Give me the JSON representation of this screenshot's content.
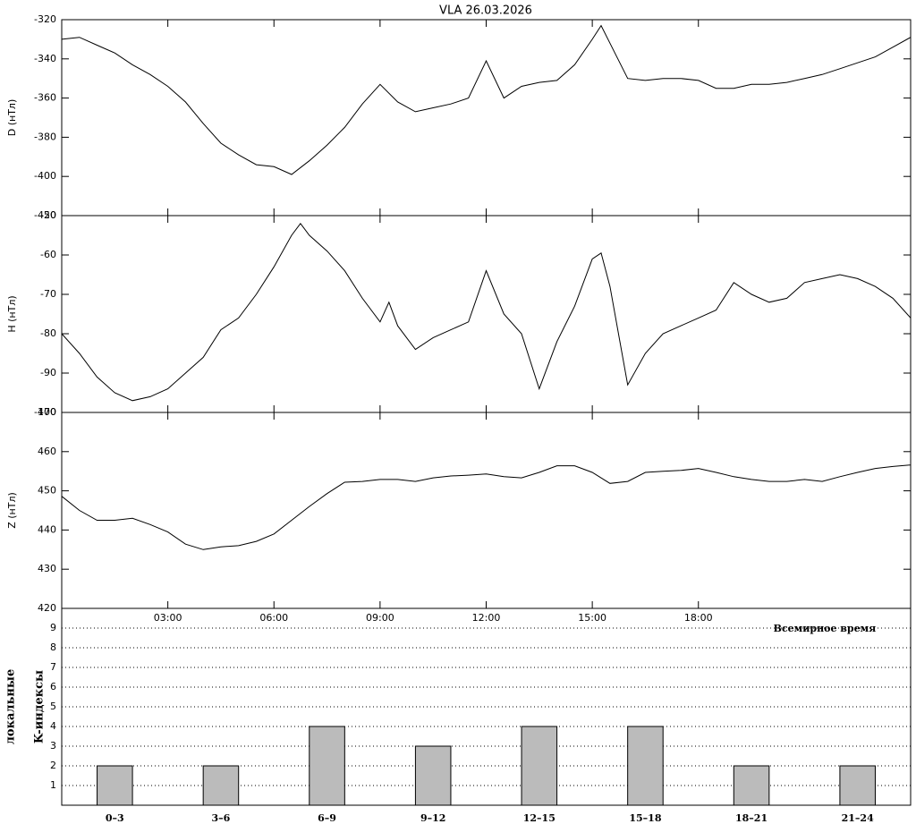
{
  "chart_data": [
    {
      "type": "line",
      "title": "VLA   26.03.2026",
      "ylabel": "D (нТл)",
      "color": "#000000",
      "xlim": [
        0,
        24
      ],
      "ylim": [
        -420,
        -320
      ],
      "yticks": [
        -420,
        -400,
        -380,
        -360,
        -340,
        -320
      ],
      "x": [
        0,
        0.5,
        1,
        1.5,
        2,
        2.5,
        3,
        3.5,
        4,
        4.5,
        5,
        5.5,
        6,
        6.5,
        7,
        7.5,
        8,
        8.5,
        9,
        9.5,
        10,
        10.5,
        11,
        11.5,
        12,
        12.5,
        13,
        13.5,
        14,
        14.5,
        15,
        15.25,
        15.5,
        16,
        16.5,
        17,
        17.5,
        18,
        18.5,
        19,
        19.5,
        20,
        20.5,
        21,
        21.5,
        22,
        22.5,
        23,
        23.5,
        24
      ],
      "values": [
        -330,
        -329,
        -333,
        -337,
        -343,
        -348,
        -354,
        -362,
        -373,
        -383,
        -389,
        -394,
        -395,
        -399,
        -392,
        -384,
        -375,
        -363,
        -353,
        -362,
        -367,
        -365,
        -363,
        -360,
        -341,
        -360,
        -354,
        -352,
        -351,
        -343,
        -330,
        -323,
        -332,
        -350,
        -351,
        -350,
        -350,
        -351,
        -355,
        -355,
        -353,
        -353,
        -352,
        -350,
        -348,
        -345,
        -342,
        -339,
        -334,
        -329
      ]
    },
    {
      "type": "line",
      "ylabel": "H (нТл)",
      "color": "#000000",
      "xlim": [
        0,
        24
      ],
      "ylim": [
        -100,
        -50
      ],
      "yticks": [
        -100,
        -90,
        -80,
        -70,
        -60,
        -50
      ],
      "x": [
        0,
        0.5,
        1,
        1.5,
        2,
        2.5,
        3,
        3.5,
        4,
        4.5,
        5,
        5.5,
        6,
        6.5,
        6.75,
        7,
        7.5,
        8,
        8.5,
        9,
        9.25,
        9.5,
        10,
        10.5,
        11,
        11.5,
        12,
        12.5,
        13,
        13.5,
        14,
        14.5,
        15,
        15.25,
        15.5,
        16,
        16.5,
        17,
        17.5,
        18,
        18.5,
        19,
        19.5,
        20,
        20.5,
        21,
        21.5,
        22,
        22.5,
        23,
        23.5,
        24
      ],
      "values": [
        -80,
        -85,
        -91,
        -95,
        -97,
        -96,
        -94,
        -90,
        -86,
        -79,
        -76,
        -70,
        -63,
        -55,
        -52,
        -55,
        -59,
        -64,
        -71,
        -77,
        -72,
        -78,
        -84,
        -81,
        -79,
        -77,
        -64,
        -75,
        -80,
        -94,
        -82,
        -73,
        -61,
        -59.5,
        -68,
        -93,
        -85,
        -80,
        -78,
        -76,
        -74,
        -67,
        -70,
        -72,
        -71,
        -67,
        -66,
        -65,
        -66,
        -68,
        -71,
        -76
      ]
    },
    {
      "type": "line",
      "ylabel": "Z (нТл)",
      "color": "#000000",
      "xlabel": "Всемирное время",
      "xlim": [
        0,
        24
      ],
      "ylim": [
        420,
        470
      ],
      "yticks": [
        420,
        430,
        440,
        450,
        460,
        470
      ],
      "xticks": [
        {
          "value": 3,
          "label": "03:00"
        },
        {
          "value": 6,
          "label": "06:00"
        },
        {
          "value": 9,
          "label": "09:00"
        },
        {
          "value": 12,
          "label": "12:00"
        },
        {
          "value": 15,
          "label": "15:00"
        },
        {
          "value": 18,
          "label": "18:00"
        }
      ],
      "x": [
        0,
        0.5,
        1,
        1.5,
        2,
        2.5,
        3,
        3.5,
        4,
        4.5,
        5,
        5.5,
        6,
        6.5,
        7,
        7.5,
        8,
        8.5,
        9,
        9.5,
        10,
        10.5,
        11,
        11.5,
        12,
        12.5,
        13,
        13.5,
        14,
        14.5,
        15,
        15.5,
        16,
        16.5,
        17,
        17.5,
        18,
        18.5,
        19,
        19.5,
        20,
        20.5,
        21,
        21.5,
        22,
        22.5,
        23,
        23.5,
        24
      ],
      "values": [
        448.6,
        445,
        442.5,
        442.5,
        443,
        441.4,
        439.5,
        436.4,
        435,
        435.7,
        436,
        437.1,
        439,
        442.5,
        446,
        449.3,
        452.2,
        452.4,
        452.9,
        452.9,
        452.4,
        453.3,
        453.8,
        454,
        454.3,
        453.6,
        453.3,
        454.7,
        456.4,
        456.4,
        454.7,
        451.9,
        452.4,
        454.7,
        455,
        455.2,
        455.7,
        454.7,
        453.6,
        452.9,
        452.4,
        452.4,
        452.9,
        452.4,
        453.6,
        454.7,
        455.7,
        456.2,
        456.6
      ]
    },
    {
      "type": "bar",
      "ylabel": "локальные",
      "ylabel2": "K-индексы",
      "color": "#bbbbbb",
      "grid": true,
      "categories": [
        "0–3",
        "3–6",
        "6–9",
        "9–12",
        "12–15",
        "15–18",
        "18–21",
        "21–24"
      ],
      "values": [
        2,
        2,
        4,
        3,
        4,
        4,
        2,
        2
      ],
      "ylim": [
        0,
        10
      ],
      "yticks": [
        1,
        2,
        3,
        4,
        5,
        6,
        7,
        8,
        9
      ]
    }
  ]
}
